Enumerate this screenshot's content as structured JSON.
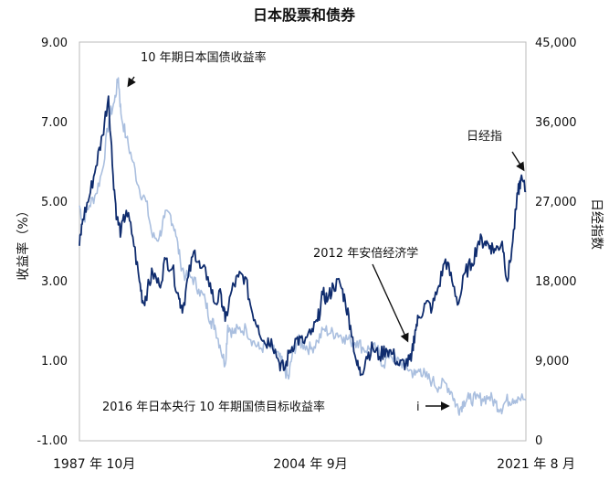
{
  "chart_data": {
    "type": "line",
    "title": "日本股票和债券",
    "ylabel_left": "收益率（%）",
    "ylabel_right": "日经指数",
    "x_labels": [
      "1987 年 10月",
      "2004 年 9月",
      "2021 年 8 月"
    ],
    "x_range": [
      1987.75,
      2021.6
    ],
    "ylim_left": [
      -1.0,
      9.0
    ],
    "ylim_right": [
      0,
      45000
    ],
    "yticks_left": [
      "9.00",
      "7.00",
      "5.00",
      "3.00",
      "1.00",
      "-1.00"
    ],
    "yticks_right": [
      "45,000",
      "36,000",
      "27,000",
      "18,000",
      "9,000",
      "0"
    ],
    "grid": false,
    "legend": "none",
    "annotations": {
      "bond": "10 年期日本国债收益率",
      "nikkei": "日经指",
      "abe": "2012 年安倍经济学",
      "boj": "2016 年日本央行 10 年期国债目标收益率",
      "boj_marker": "i"
    },
    "colors": {
      "bond": "#aabfdf",
      "nikkei": "#0f2c6e",
      "text": "#111111"
    },
    "series": [
      {
        "key": "bond",
        "axis": "left",
        "x": [
          1987.75,
          1988.0,
          1988.5,
          1989.0,
          1989.5,
          1990.0,
          1990.4,
          1990.7,
          1990.9,
          1991.3,
          1991.8,
          1992.3,
          1992.8,
          1993.3,
          1993.8,
          1994.2,
          1994.6,
          1995.0,
          1995.4,
          1995.8,
          1996.3,
          1996.8,
          1997.3,
          1997.7,
          1998.0,
          1998.4,
          1998.8,
          1999.0,
          1999.4,
          1999.8,
          2000.4,
          2000.9,
          2001.4,
          2001.9,
          2002.4,
          2002.9,
          2003.3,
          2003.6,
          2003.9,
          2004.3,
          2004.8,
          2005.3,
          2005.8,
          2006.3,
          2006.8,
          2007.3,
          2007.8,
          2008.3,
          2008.8,
          2009.3,
          2009.8,
          2010.3,
          2010.8,
          2011.3,
          2011.8,
          2012.3,
          2012.8,
          2013.2,
          2013.6,
          2014.0,
          2014.5,
          2015.0,
          2015.5,
          2016.0,
          2016.3,
          2016.6,
          2016.9,
          2017.3,
          2017.8,
          2018.3,
          2018.8,
          2019.3,
          2019.7,
          2020.1,
          2020.6,
          2021.0,
          2021.6
        ],
        "y": [
          4.9,
          4.5,
          4.9,
          5.2,
          5.8,
          7.1,
          7.5,
          8.1,
          7.2,
          6.6,
          6.0,
          5.3,
          5.0,
          4.1,
          4.1,
          4.6,
          4.7,
          4.3,
          3.5,
          3.1,
          3.1,
          2.8,
          2.5,
          2.0,
          1.9,
          1.4,
          0.9,
          1.9,
          1.7,
          1.8,
          1.8,
          1.5,
          1.3,
          1.4,
          1.3,
          1.1,
          0.8,
          0.55,
          1.2,
          1.5,
          1.4,
          1.3,
          1.5,
          1.8,
          1.7,
          1.7,
          1.6,
          1.5,
          1.5,
          1.3,
          1.3,
          1.3,
          0.9,
          1.2,
          1.0,
          0.95,
          0.78,
          0.65,
          0.8,
          0.6,
          0.5,
          0.35,
          0.45,
          0.2,
          -0.1,
          -0.2,
          0.0,
          0.05,
          0.05,
          0.05,
          0.1,
          -0.05,
          -0.2,
          0.0,
          0.05,
          0.1,
          0.02
        ]
      },
      {
        "key": "nikkei",
        "axis": "right",
        "x": [
          1987.75,
          1988.0,
          1988.5,
          1989.0,
          1989.5,
          1989.95,
          1990.3,
          1990.6,
          1990.9,
          1991.3,
          1991.8,
          1992.3,
          1992.6,
          1992.9,
          1993.3,
          1993.8,
          1994.3,
          1994.8,
          1995.3,
          1995.6,
          1996.0,
          1996.5,
          1996.9,
          1997.5,
          1998.0,
          1998.5,
          1998.8,
          1999.3,
          1999.8,
          2000.3,
          2000.8,
          2001.3,
          2001.8,
          2002.3,
          2002.9,
          2003.3,
          2003.7,
          2004.2,
          2004.7,
          2005.3,
          2005.8,
          2006.2,
          2006.6,
          2007.0,
          2007.5,
          2007.9,
          2008.3,
          2008.8,
          2009.1,
          2009.5,
          2010.0,
          2010.5,
          2011.0,
          2011.5,
          2012.0,
          2012.5,
          2012.9,
          2013.2,
          2013.5,
          2014.0,
          2014.5,
          2015.0,
          2015.5,
          2016.0,
          2016.5,
          2017.0,
          2017.5,
          2018.0,
          2018.5,
          2018.9,
          2019.3,
          2019.8,
          2020.2,
          2020.6,
          2021.0,
          2021.2,
          2021.6
        ],
        "y": [
          22000,
          25000,
          27500,
          31000,
          34500,
          38900,
          30000,
          25000,
          23500,
          26000,
          23000,
          18000,
          15500,
          17000,
          19000,
          17500,
          20500,
          19500,
          16000,
          15000,
          18500,
          21500,
          19500,
          18500,
          15500,
          16500,
          13500,
          17000,
          18500,
          18500,
          14800,
          13000,
          11000,
          11500,
          8800,
          8000,
          10200,
          11500,
          11100,
          12000,
          13500,
          16500,
          16000,
          17500,
          17800,
          15800,
          13000,
          8500,
          7500,
          9500,
          10500,
          9500,
          10400,
          9800,
          8500,
          8800,
          9000,
          12500,
          14000,
          15500,
          15000,
          17500,
          20500,
          18000,
          15500,
          19000,
          20000,
          22500,
          22500,
          22000,
          21500,
          22500,
          18000,
          22500,
          28000,
          29500,
          28200
        ]
      }
    ]
  }
}
